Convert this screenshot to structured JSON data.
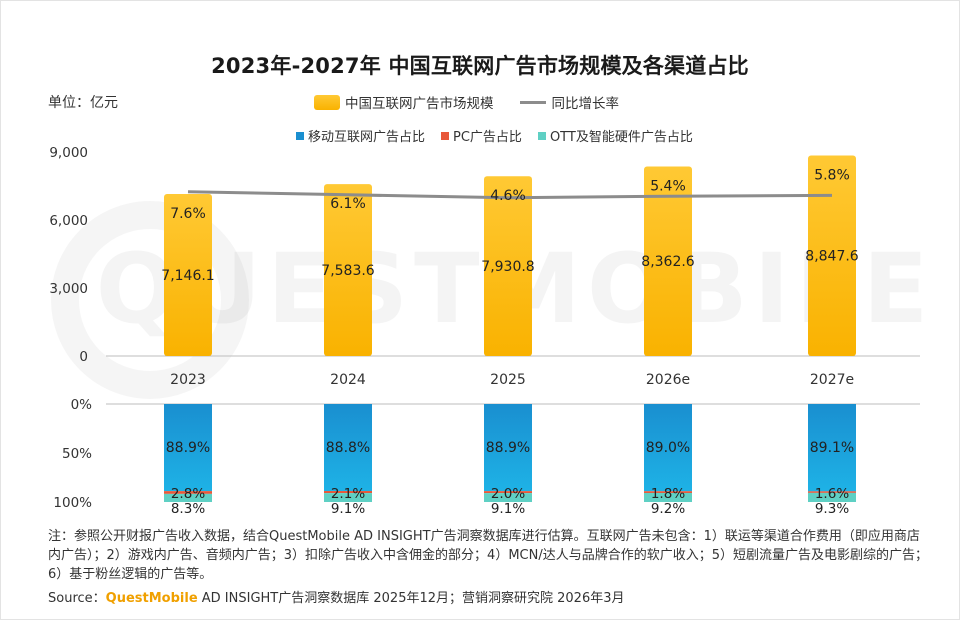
{
  "title": "2023年-2027年 中国互联网广告市场规模及各渠道占比",
  "unit_label": "单位：亿元",
  "legend_top": [
    {
      "name": "中国互联网广告市场规模",
      "type": "bar"
    },
    {
      "name": "同比增长率",
      "type": "line"
    }
  ],
  "legend_bottom": [
    {
      "name": "移动互联网广告占比",
      "color": "#1a8fd0"
    },
    {
      "name": "PC广告占比",
      "color": "#e8583a"
    },
    {
      "name": "OTT及智能硬件广告占比",
      "color": "#5fd0c4"
    }
  ],
  "colors": {
    "bar_top": "#ffc934",
    "bar_bottom": "#f9b200",
    "line": "#8c8c8c",
    "mobile_top": "#1a8fd0",
    "mobile_bottom": "#1eb2e6",
    "pc": "#e8583a",
    "ott": "#5fd0c4"
  },
  "chart_data": [
    {
      "type": "bar",
      "categories": [
        "2023",
        "2024",
        "2025",
        "2026e",
        "2027e"
      ],
      "series": [
        {
          "name": "中国互联网广告市场规模",
          "values": [
            7146.1,
            7583.6,
            7930.8,
            8362.6,
            8847.6
          ],
          "labels": [
            "7,146.1",
            "7,583.6",
            "7,930.8",
            "8,362.6",
            "8,847.6"
          ]
        },
        {
          "name": "同比增长率",
          "type": "line",
          "values": [
            7.6,
            6.1,
            4.6,
            5.4,
            5.8
          ],
          "labels": [
            "7.6%",
            "6.1%",
            "4.6%",
            "5.4%",
            "5.8%"
          ]
        }
      ],
      "ylim": [
        0,
        9000
      ],
      "yticks": [
        "0",
        "3,000",
        "6,000",
        "9,000"
      ],
      "grid": false
    },
    {
      "type": "bar",
      "stacked": true,
      "categories": [
        "2023",
        "2024",
        "2025",
        "2026e",
        "2027e"
      ],
      "series": [
        {
          "name": "移动互联网广告占比",
          "values": [
            88.9,
            88.8,
            88.9,
            89.0,
            89.1
          ],
          "labels": [
            "88.9%",
            "88.8%",
            "88.9%",
            "89.0%",
            "89.1%"
          ]
        },
        {
          "name": "PC广告占比",
          "values": [
            2.8,
            2.1,
            2.0,
            1.8,
            1.6
          ],
          "labels": [
            "2.8%",
            "2.1%",
            "2.0%",
            "1.8%",
            "1.6%"
          ]
        },
        {
          "name": "OTT及智能硬件广告占比",
          "values": [
            8.3,
            9.1,
            9.1,
            9.2,
            9.3
          ],
          "labels": [
            "8.3%",
            "9.1%",
            "9.1%",
            "9.2%",
            "9.3%"
          ]
        }
      ],
      "ylim": [
        0,
        100
      ],
      "yticks": [
        "0%",
        "50%",
        "100%"
      ],
      "inverted": true
    }
  ],
  "note": "注：参照公开财报广告收入数据，结合QuestMobile AD INSIGHT广告洞察数据库进行估算。互联网广告未包含：1）联运等渠道合作费用（即应用商店内广告）；2）游戏内广告、音频内广告；3）扣除广告收入中含佣金的部分；4）MCN/达人与品牌合作的软广收入；5）短剧流量广告及电影剧综的广告；6）基于粉丝逻辑的广告等。",
  "source": {
    "prefix": "Source：",
    "brand": "QuestMobile",
    "rest": " AD INSIGHT广告洞察数据库 2025年12月；营销洞察研究院 2026年3月"
  },
  "watermark": "QUESTMOBILE"
}
